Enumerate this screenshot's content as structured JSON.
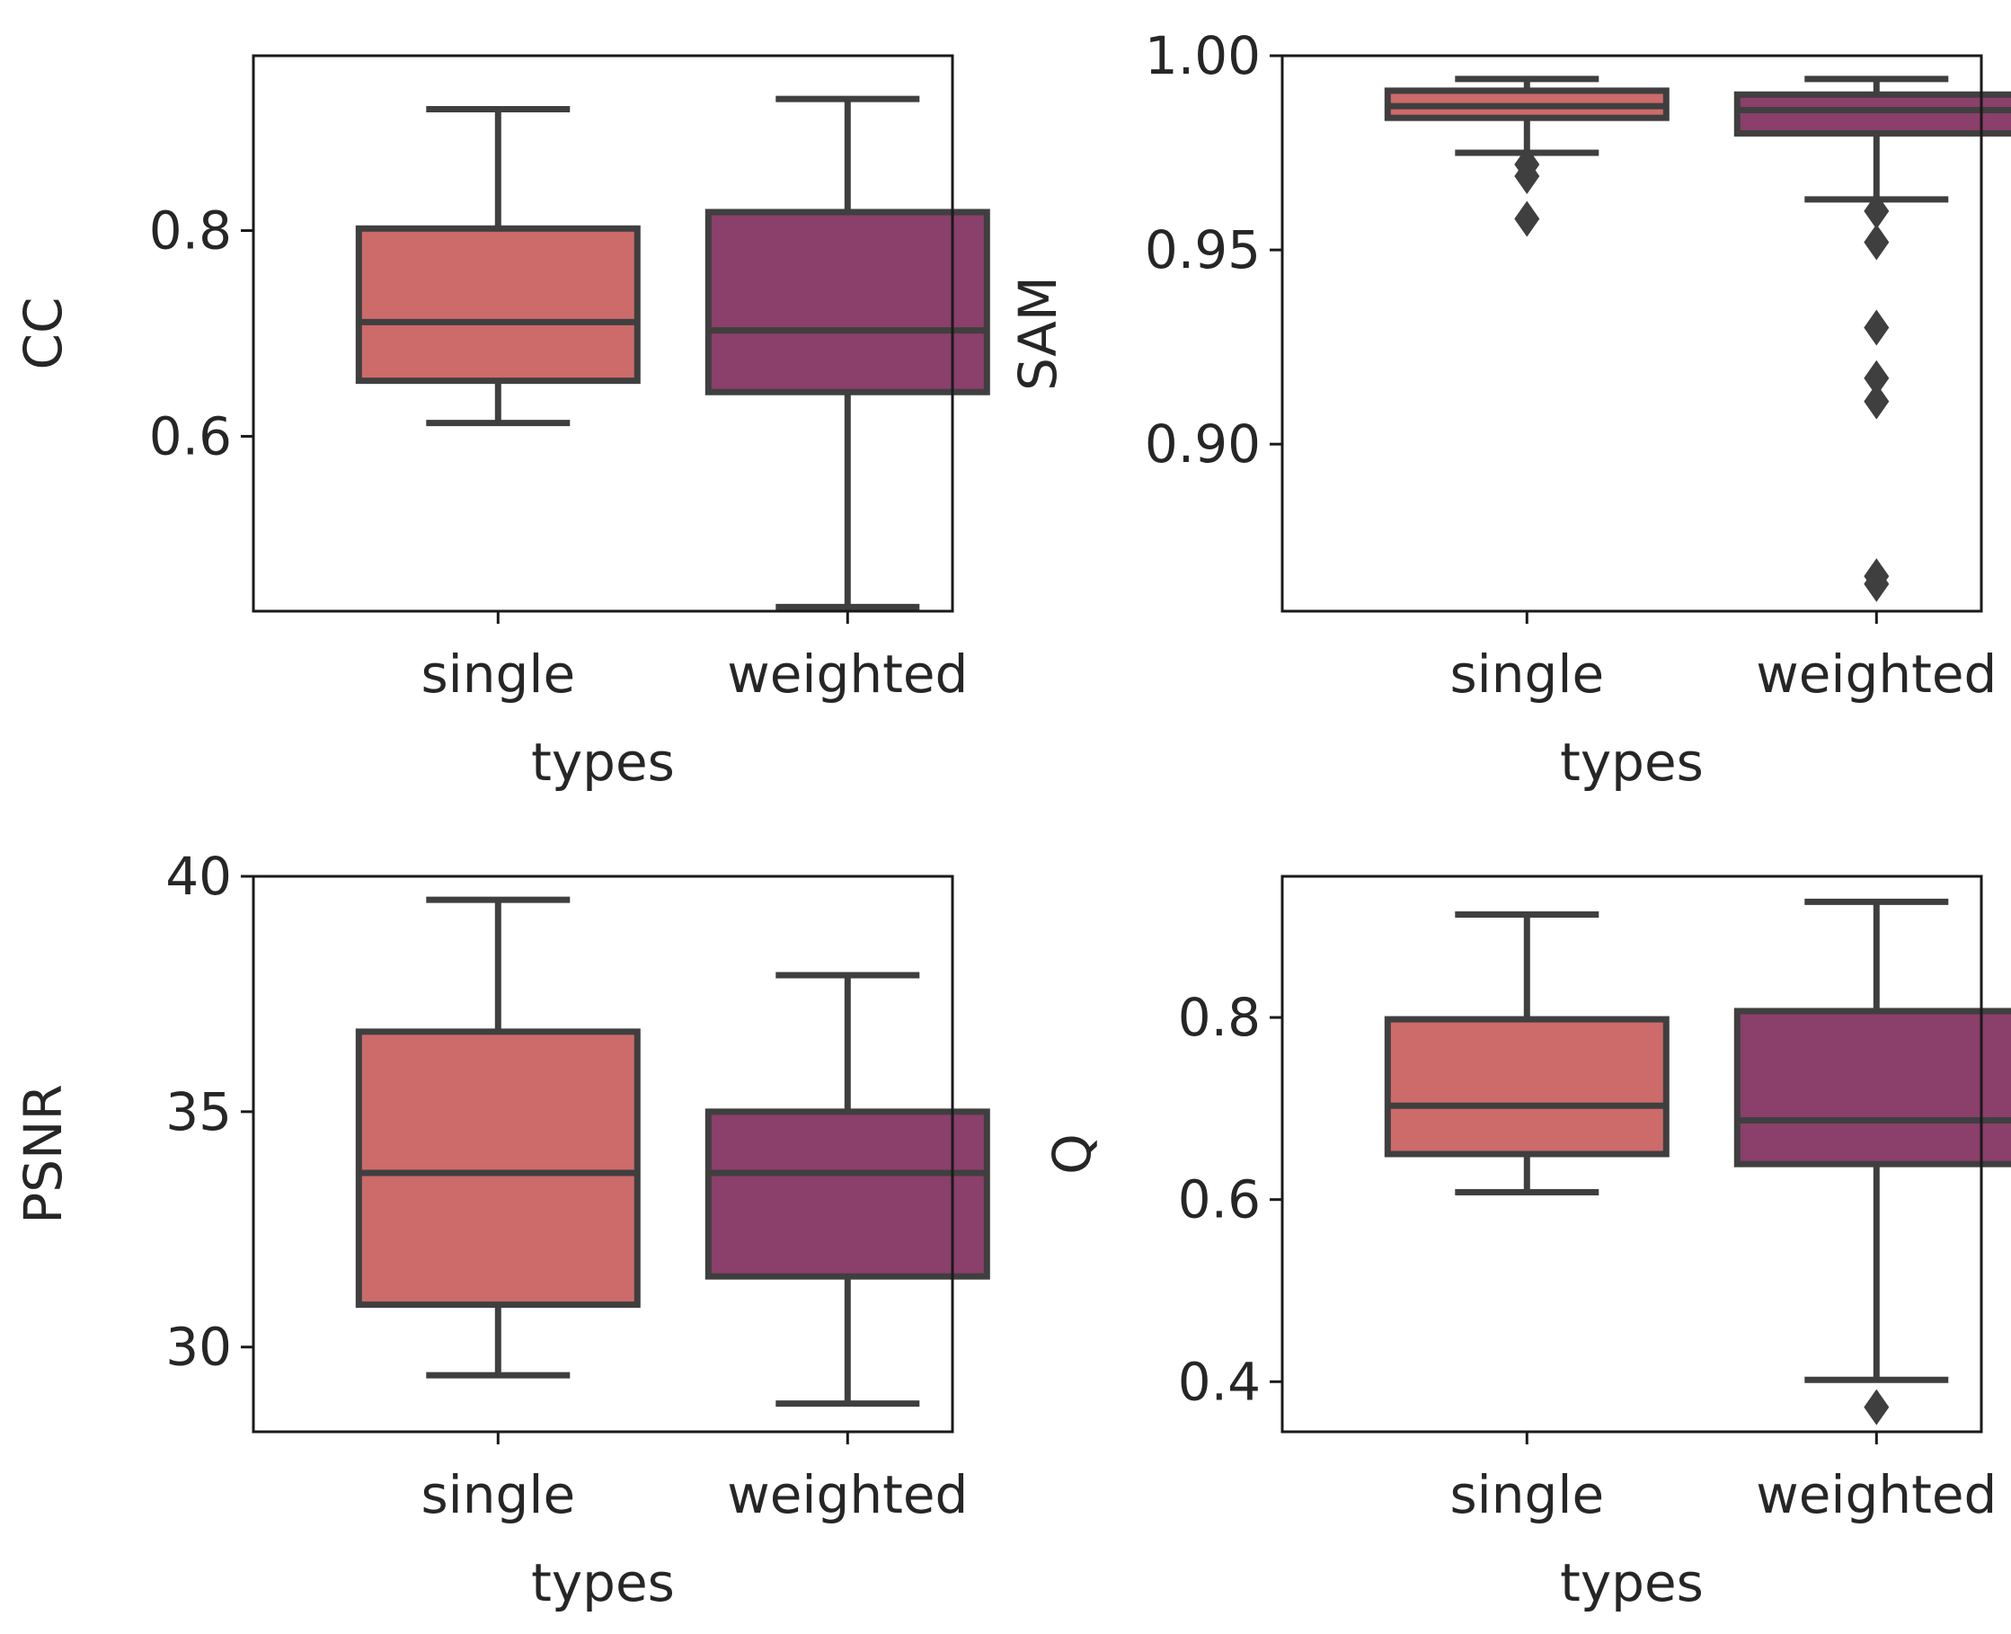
{
  "chart_data": [
    {
      "type": "box",
      "ylabel": "CC",
      "xlabel": "types",
      "categories": [
        "single",
        "weighted"
      ],
      "ylim": [
        0.43,
        0.97
      ],
      "yticks": [
        0.6,
        0.8
      ],
      "ytick_labels": [
        "0.6",
        "0.8"
      ],
      "boxes": [
        {
          "name": "single",
          "whislo": 0.613,
          "q1": 0.654,
          "med": 0.711,
          "q3": 0.802,
          "whishi": 0.918,
          "outliers": [],
          "color": "#cd6a6a"
        },
        {
          "name": "weighted",
          "whislo": 0.434,
          "q1": 0.643,
          "med": 0.703,
          "q3": 0.818,
          "whishi": 0.928,
          "outliers": [],
          "color": "#8b3f6b"
        }
      ]
    },
    {
      "type": "box",
      "ylabel": "SAM",
      "xlabel": "types",
      "categories": [
        "single",
        "weighted"
      ],
      "ylim": [
        0.857,
        1.0
      ],
      "yticks": [
        0.9,
        0.95,
        1.0
      ],
      "ytick_labels": [
        "0.90",
        "0.95",
        "1.00"
      ],
      "boxes": [
        {
          "name": "single",
          "whislo": 0.975,
          "q1": 0.984,
          "med": 0.987,
          "q3": 0.991,
          "whishi": 0.994,
          "outliers": [
            0.972,
            0.969,
            0.958
          ],
          "color": "#cd6a6a"
        },
        {
          "name": "weighted",
          "whislo": 0.963,
          "q1": 0.98,
          "med": 0.986,
          "q3": 0.99,
          "whishi": 0.994,
          "outliers": [
            0.96,
            0.952,
            0.93,
            0.917,
            0.911,
            0.866,
            0.864
          ],
          "color": "#8b3f6b"
        }
      ]
    },
    {
      "type": "box",
      "ylabel": "PSNR",
      "xlabel": "types",
      "categories": [
        "single",
        "weighted"
      ],
      "ylim": [
        28.2,
        40.0
      ],
      "yticks": [
        30,
        35,
        40
      ],
      "ytick_labels": [
        "30",
        "35",
        "40"
      ],
      "boxes": [
        {
          "name": "single",
          "whislo": 29.4,
          "q1": 30.9,
          "med": 33.7,
          "q3": 36.7,
          "whishi": 39.5,
          "outliers": [],
          "color": "#cd6a6a"
        },
        {
          "name": "weighted",
          "whislo": 28.8,
          "q1": 31.5,
          "med": 33.7,
          "q3": 35.0,
          "whishi": 37.9,
          "outliers": [],
          "color": "#8b3f6b"
        }
      ]
    },
    {
      "type": "box",
      "ylabel": "Q",
      "xlabel": "types",
      "categories": [
        "single",
        "weighted"
      ],
      "ylim": [
        0.345,
        0.955
      ],
      "yticks": [
        0.4,
        0.6,
        0.8
      ],
      "ytick_labels": [
        "0.4",
        "0.6",
        "0.8"
      ],
      "boxes": [
        {
          "name": "single",
          "whislo": 0.608,
          "q1": 0.65,
          "med": 0.703,
          "q3": 0.798,
          "whishi": 0.913,
          "outliers": [],
          "color": "#cd6a6a"
        },
        {
          "name": "weighted",
          "whislo": 0.402,
          "q1": 0.639,
          "med": 0.687,
          "q3": 0.807,
          "whishi": 0.927,
          "outliers": [
            0.372
          ],
          "color": "#8b3f6b"
        }
      ]
    }
  ],
  "colors": {
    "single": "#cd6a6a",
    "weighted": "#8b3f6b",
    "line": "#3f3f3f",
    "axis": "#1a1a1a",
    "text": "#262626"
  }
}
